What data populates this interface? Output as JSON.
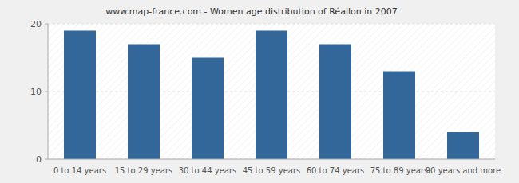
{
  "chart_data": {
    "type": "bar",
    "title": "www.map-france.com - Women age distribution of Réallon in 2007",
    "categories": [
      "0 to 14 years",
      "15 to 29 years",
      "30 to 44 years",
      "45 to 59 years",
      "60 to 74 years",
      "75 to 89 years",
      "90 years and more"
    ],
    "values": [
      19,
      17,
      15,
      19,
      17,
      13,
      4
    ],
    "color": "#336699",
    "ylim": [
      0,
      20
    ],
    "yticks": [
      0,
      10,
      20
    ],
    "grid": true
  }
}
